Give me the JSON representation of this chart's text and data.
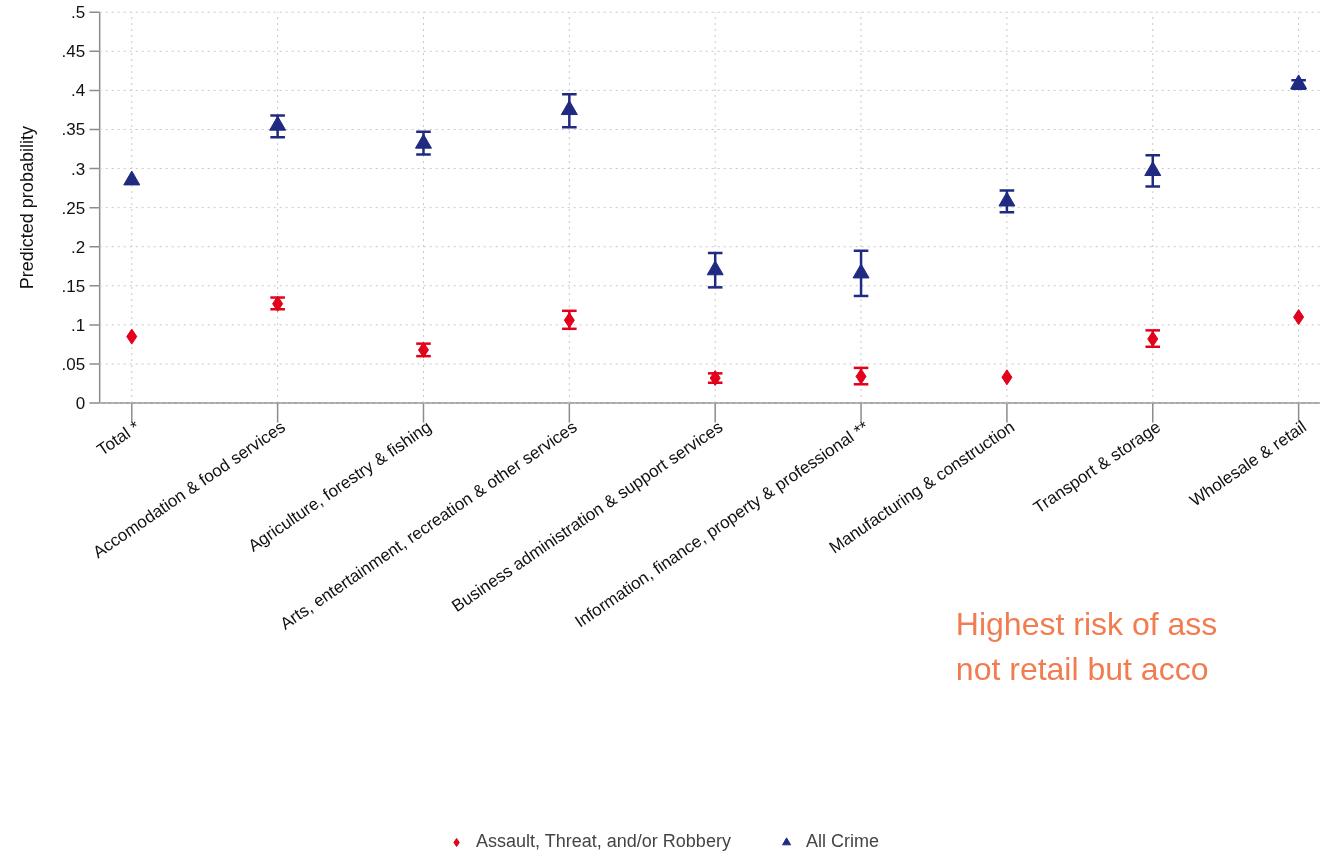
{
  "chart_data": {
    "type": "scatter",
    "ylabel": "Predicted probability",
    "categories": [
      "Total *",
      "Accomodation & food services",
      "Agriculture, forestry & fishing",
      "Arts, entertainment, recreation & other services",
      "Business administration & support services",
      "Information, finance, property & professional **",
      "Manufacturing & construction",
      "Transport & storage",
      "Wholesale & retail"
    ],
    "series": [
      {
        "name": "Assault, Threat, and/or Robbery",
        "color": "#e3001b",
        "marker": "diamond",
        "values": [
          0.085,
          0.127,
          0.068,
          0.106,
          0.032,
          0.034,
          0.033,
          0.082,
          0.11
        ],
        "errors": [
          null,
          [
            0.12,
            0.135
          ],
          [
            0.06,
            0.076
          ],
          [
            0.095,
            0.118
          ],
          [
            0.026,
            0.038
          ],
          [
            0.024,
            0.045
          ],
          null,
          [
            0.072,
            0.093
          ],
          null
        ]
      },
      {
        "name": "All Crime",
        "color": "#1f2a80",
        "marker": "triangle",
        "values": [
          0.285,
          0.355,
          0.332,
          0.375,
          0.17,
          0.166,
          0.258,
          0.297,
          0.408
        ],
        "errors": [
          null,
          [
            0.34,
            0.368
          ],
          [
            0.318,
            0.347
          ],
          [
            0.353,
            0.395
          ],
          [
            0.148,
            0.192
          ],
          [
            0.137,
            0.195
          ],
          [
            0.244,
            0.272
          ],
          [
            0.277,
            0.317
          ],
          [
            0.402,
            0.413
          ]
        ]
      }
    ],
    "ylim": [
      0,
      0.5
    ],
    "yticks": [
      {
        "value": 0,
        "label": "0"
      },
      {
        "value": 0.05,
        "label": ".05"
      },
      {
        "value": 0.1,
        "label": ".1"
      },
      {
        "value": 0.15,
        "label": ".15"
      },
      {
        "value": 0.2,
        "label": ".2"
      },
      {
        "value": 0.25,
        "label": ".25"
      },
      {
        "value": 0.3,
        "label": ".3"
      },
      {
        "value": 0.35,
        "label": ".35"
      },
      {
        "value": 0.4,
        "label": ".4"
      },
      {
        "value": 0.45,
        "label": ".45"
      },
      {
        "value": 0.5,
        "label": ".5"
      }
    ],
    "grid": true,
    "legend": "bottom",
    "annotations": [
      "Highest risk of ass\nnot retail but acco"
    ]
  }
}
